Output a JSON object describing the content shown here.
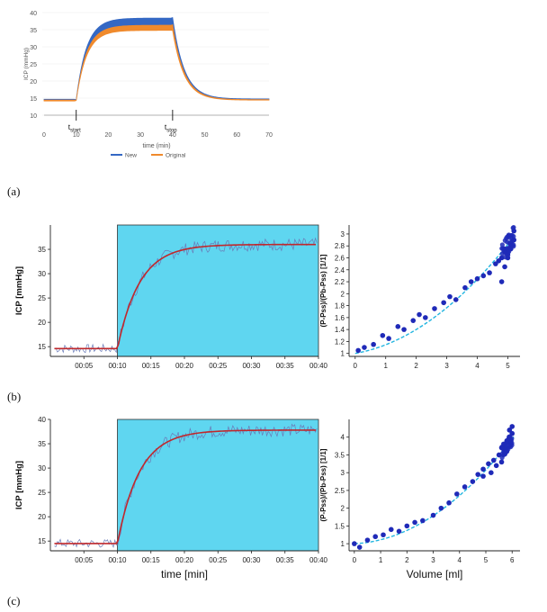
{
  "panel_labels": {
    "a": "(a)",
    "b": "(b)",
    "c": "(c)"
  },
  "colors": {
    "new": "#3468c4",
    "original": "#f08a2c",
    "shade": "#5fd6f0",
    "fit": "#c0282c",
    "raw": "#6a7bb8",
    "scatter": "#1f2ab8",
    "scatter_fit": "#22b5e0"
  },
  "chart_data": [
    {
      "id": "a",
      "type": "line",
      "xlabel": "time (min)",
      "ylabel": "ICP (mmHg)",
      "xlim": [
        0,
        70
      ],
      "ylim": [
        10,
        40
      ],
      "xticks": [
        0,
        10,
        20,
        30,
        40,
        50,
        60,
        70
      ],
      "yticks": [
        10,
        15,
        20,
        25,
        30,
        35,
        40
      ],
      "annotations": [
        {
          "text": "t",
          "sub": "start",
          "x": 10
        },
        {
          "text": "t",
          "sub": "stop",
          "x": 40
        }
      ],
      "legend": {
        "position": "bottom-center"
      },
      "series": [
        {
          "name": "New",
          "color": "#3468c4",
          "baseline": 14.5,
          "upper": [
            36.2,
            38.4
          ],
          "end": 14.6
        },
        {
          "name": "Original",
          "color": "#f08a2c",
          "baseline": 14.3,
          "upper": [
            34.8,
            36.3
          ],
          "end": 14.4
        }
      ],
      "t_start": 10,
      "t_stop": 40
    },
    {
      "id": "b-left",
      "type": "line",
      "xlabel": "",
      "ylabel": "ICP [mmHg]",
      "xlim": [
        0,
        40
      ],
      "ylim": [
        13,
        40
      ],
      "xticks": [
        "00:05",
        "00:10",
        "00:15",
        "00:20",
        "00:25",
        "00:30",
        "00:35",
        "00:40"
      ],
      "yticks": [
        15,
        20,
        25,
        30,
        35
      ],
      "baseline": 14.6,
      "plateau": 36.0,
      "infusion_start": 10,
      "infusion_end": 40
    },
    {
      "id": "b-right",
      "type": "scatter",
      "xlabel": "",
      "ylabel": "(P-Pss)/(Pb-Pss) [1/1]",
      "xlim": [
        -0.2,
        5.4
      ],
      "ylim": [
        0.95,
        3.15
      ],
      "xticks": [
        0,
        1,
        2,
        3,
        4,
        5
      ],
      "yticks": [
        1,
        1.2,
        1.4,
        1.6,
        1.8,
        2,
        2.2,
        2.4,
        2.6,
        2.8,
        3
      ],
      "points_x": [
        0.1,
        0.3,
        0.6,
        0.9,
        1.1,
        1.4,
        1.6,
        1.9,
        2.1,
        2.3,
        2.6,
        2.9,
        3.1,
        3.3,
        3.6,
        3.8,
        4.0,
        4.2,
        4.4,
        4.6,
        4.7,
        4.8,
        4.9,
        5.0,
        5.0,
        5.1,
        5.1,
        5.2,
        5.2,
        5.1,
        5.0,
        4.9,
        4.8
      ],
      "points_y": [
        1.05,
        1.1,
        1.15,
        1.3,
        1.25,
        1.45,
        1.4,
        1.55,
        1.65,
        1.6,
        1.75,
        1.85,
        1.95,
        1.9,
        2.1,
        2.2,
        2.25,
        2.3,
        2.35,
        2.5,
        2.55,
        2.6,
        2.45,
        2.7,
        2.65,
        2.75,
        2.85,
        2.9,
        3.05,
        2.8,
        2.6,
        2.7,
        2.2
      ],
      "fit_a": 1.0,
      "fit_b": 0.09,
      "fit_c": 0.047
    },
    {
      "id": "c-left",
      "type": "line",
      "xlabel": "time [min]",
      "ylabel": "ICP [mmHg]",
      "xlim": [
        0,
        40
      ],
      "ylim": [
        13,
        40
      ],
      "xticks": [
        "00:05",
        "00:10",
        "00:15",
        "00:20",
        "00:25",
        "00:30",
        "00:35",
        "00:40"
      ],
      "yticks": [
        15,
        20,
        25,
        30,
        35,
        40
      ],
      "baseline": 14.5,
      "plateau": 37.8,
      "infusion_start": 10,
      "infusion_end": 40
    },
    {
      "id": "c-right",
      "type": "scatter",
      "xlabel": "Volume [ml]",
      "ylabel": "(P-Pss)/(Pb-Pss) [1/1]",
      "xlim": [
        -0.2,
        6.3
      ],
      "ylim": [
        0.8,
        4.5
      ],
      "xticks": [
        0,
        1,
        2,
        3,
        4,
        5,
        6
      ],
      "yticks": [
        1,
        1.5,
        2,
        2.5,
        3,
        3.5,
        4
      ],
      "points_x": [
        0.0,
        0.2,
        0.5,
        0.8,
        1.1,
        1.4,
        1.7,
        2.0,
        2.3,
        2.6,
        3.0,
        3.3,
        3.6,
        3.9,
        4.2,
        4.5,
        4.7,
        4.9,
        5.1,
        5.3,
        5.5,
        5.6,
        5.7,
        5.8,
        5.9,
        5.9,
        6.0,
        6.0,
        5.8,
        5.6,
        5.4,
        5.2,
        4.9
      ],
      "points_y": [
        1.0,
        0.9,
        1.1,
        1.2,
        1.25,
        1.4,
        1.35,
        1.5,
        1.6,
        1.65,
        1.8,
        2.0,
        2.15,
        2.4,
        2.6,
        2.75,
        2.95,
        3.1,
        3.25,
        3.35,
        3.5,
        3.7,
        3.8,
        3.9,
        4.0,
        4.2,
        4.3,
        4.1,
        3.6,
        3.3,
        3.2,
        3.0,
        2.9
      ],
      "fit_a": 1.0,
      "fit_b": 0.035,
      "fit_c": 0.066
    }
  ]
}
